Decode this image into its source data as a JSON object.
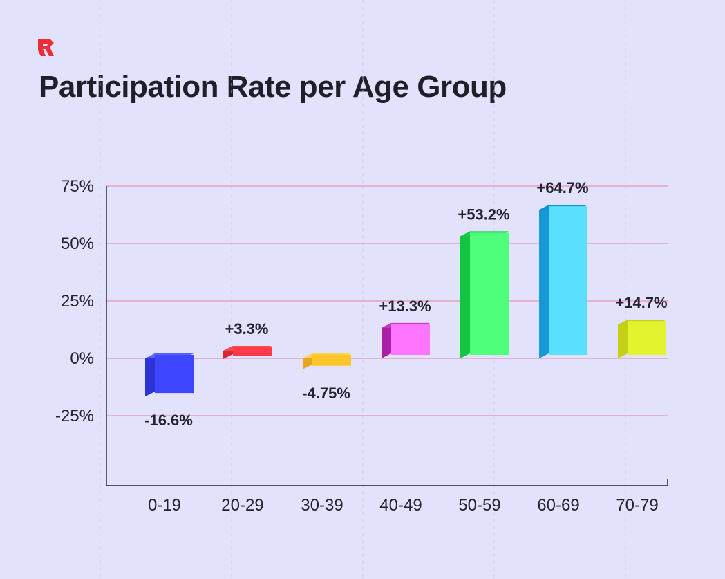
{
  "logo_icon": "r-logo-icon",
  "brand_color": "#ef2b37",
  "chart_data": {
    "type": "bar",
    "title": "Participation Rate per Age Group",
    "xlabel": "",
    "ylabel": "",
    "categories": [
      "0-19",
      "20-29",
      "30-39",
      "40-49",
      "50-59",
      "60-69",
      "70-79"
    ],
    "values": [
      -16.6,
      3.3,
      -4.75,
      13.3,
      53.2,
      64.7,
      14.7
    ],
    "data_labels": [
      "-16.6%",
      "+3.3%",
      "-4.75%",
      "+13.3%",
      "+53.2%",
      "+64.7%",
      "+14.7%"
    ],
    "yticks": [
      75,
      50,
      25,
      0,
      -25
    ],
    "ytick_labels": [
      "75%",
      "50%",
      "25%",
      "0%",
      "-25%"
    ],
    "ylim": [
      -50,
      75
    ],
    "grid": true,
    "colors": [
      {
        "front": "#3f46ff",
        "side": "#2d33d6",
        "top": "#5a60ff"
      },
      {
        "front": "#ff3b48",
        "side": "#d62733",
        "top": "#ff4a56"
      },
      {
        "front": "#ffc62a",
        "side": "#e5a81d",
        "top": "#ffd34a"
      },
      {
        "front": "#ff75ff",
        "side": "#a91fa8",
        "top": "#c438c4"
      },
      {
        "front": "#4dff7a",
        "side": "#12c53f",
        "top": "#18cc45"
      },
      {
        "front": "#5adfff",
        "side": "#1799d8",
        "top": "#1592d3"
      },
      {
        "front": "#e3f32d",
        "side": "#c6cf18",
        "top": "#c6cf18"
      }
    ]
  }
}
